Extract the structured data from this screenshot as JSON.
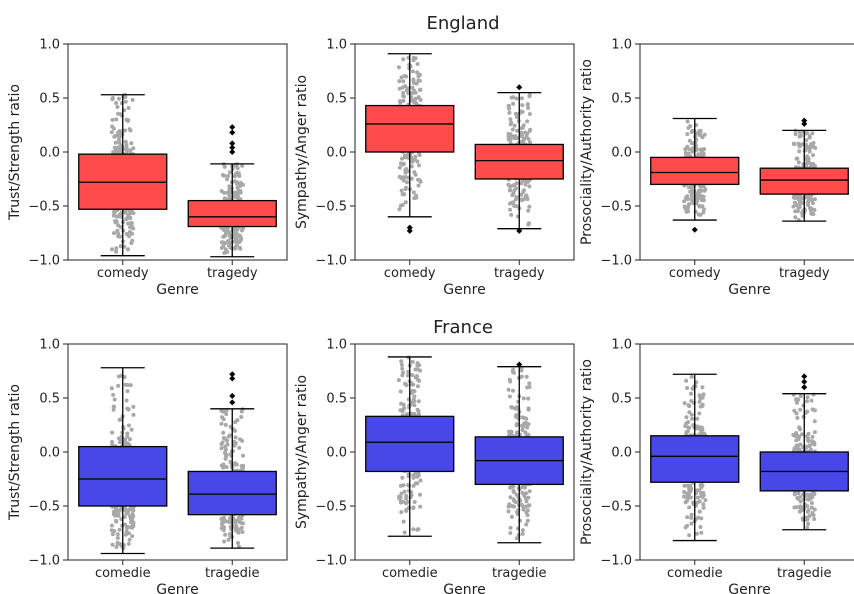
{
  "figure": {
    "row_titles": [
      "England",
      "France"
    ]
  },
  "colors": {
    "england": "#ff4b4b",
    "france": "#4848e8",
    "jitter": "#a8a8a8",
    "axis": "#222222"
  },
  "chart_data": [
    {
      "type": "box",
      "row": "England",
      "xlabel": "Genre",
      "ylabel": "Trust/Strength ratio",
      "ylim": [
        -1.0,
        1.0
      ],
      "yticks": [
        -1.0,
        -0.5,
        0.0,
        0.5,
        1.0
      ],
      "grid": false,
      "categories": [
        "comedy",
        "tragedy"
      ],
      "boxes": [
        {
          "whisker_low": -0.96,
          "q1": -0.53,
          "median": -0.28,
          "q3": -0.02,
          "whisker_high": 0.53,
          "outliers": []
        },
        {
          "whisker_low": -0.97,
          "q1": -0.69,
          "median": -0.6,
          "q3": -0.45,
          "whisker_high": -0.11,
          "outliers": [
            0.0,
            0.04,
            0.08,
            0.18,
            0.23
          ]
        }
      ]
    },
    {
      "type": "box",
      "row": "England",
      "xlabel": "Genre",
      "ylabel": "Sympathy/Anger ratio",
      "ylim": [
        -1.0,
        1.0
      ],
      "yticks": [
        -1.0,
        -0.5,
        0.0,
        0.5,
        1.0
      ],
      "grid": false,
      "categories": [
        "comedy",
        "tragedy"
      ],
      "boxes": [
        {
          "whisker_low": -0.6,
          "q1": 0.0,
          "median": 0.26,
          "q3": 0.43,
          "whisker_high": 0.91,
          "outliers": [
            -0.7,
            -0.73
          ]
        },
        {
          "whisker_low": -0.71,
          "q1": -0.25,
          "median": -0.08,
          "q3": 0.07,
          "whisker_high": 0.55,
          "outliers": [
            0.6,
            -0.73
          ]
        }
      ]
    },
    {
      "type": "box",
      "row": "England",
      "xlabel": "Genre",
      "ylabel": "Prosociality/Authority ratio",
      "ylim": [
        -1.0,
        1.0
      ],
      "yticks": [
        -1.0,
        -0.5,
        0.0,
        0.5,
        1.0
      ],
      "grid": false,
      "categories": [
        "comedy",
        "tragedy"
      ],
      "boxes": [
        {
          "whisker_low": -0.63,
          "q1": -0.3,
          "median": -0.19,
          "q3": -0.05,
          "whisker_high": 0.31,
          "outliers": [
            -0.72
          ]
        },
        {
          "whisker_low": -0.64,
          "q1": -0.39,
          "median": -0.26,
          "q3": -0.15,
          "whisker_high": 0.2,
          "outliers": [
            0.26,
            0.29
          ]
        }
      ]
    },
    {
      "type": "box",
      "row": "France",
      "xlabel": "Genre",
      "ylabel": "Trust/Strength ratio",
      "ylim": [
        -1.0,
        1.0
      ],
      "yticks": [
        -1.0,
        -0.5,
        0.0,
        0.5,
        1.0
      ],
      "grid": false,
      "categories": [
        "comedie",
        "tragedie"
      ],
      "boxes": [
        {
          "whisker_low": -0.94,
          "q1": -0.5,
          "median": -0.25,
          "q3": 0.05,
          "whisker_high": 0.78,
          "outliers": []
        },
        {
          "whisker_low": -0.89,
          "q1": -0.58,
          "median": -0.39,
          "q3": -0.18,
          "whisker_high": 0.4,
          "outliers": [
            0.46,
            0.52,
            0.68,
            0.72
          ]
        }
      ]
    },
    {
      "type": "box",
      "row": "France",
      "xlabel": "Genre",
      "ylabel": "Sympathy/Anger ratio",
      "ylim": [
        -1.0,
        1.0
      ],
      "yticks": [
        -1.0,
        -0.5,
        0.0,
        0.5,
        1.0
      ],
      "grid": false,
      "categories": [
        "comedie",
        "tragedie"
      ],
      "boxes": [
        {
          "whisker_low": -0.78,
          "q1": -0.18,
          "median": 0.09,
          "q3": 0.33,
          "whisker_high": 0.88,
          "outliers": []
        },
        {
          "whisker_low": -0.84,
          "q1": -0.3,
          "median": -0.08,
          "q3": 0.14,
          "whisker_high": 0.79,
          "outliers": [
            0.81
          ]
        }
      ]
    },
    {
      "type": "box",
      "row": "France",
      "xlabel": "Genre",
      "ylabel": "Prosociality/Authority ratio",
      "ylim": [
        -1.0,
        1.0
      ],
      "yticks": [
        -1.0,
        -0.5,
        0.0,
        0.5,
        1.0
      ],
      "grid": false,
      "categories": [
        "comedie",
        "tragedie"
      ],
      "boxes": [
        {
          "whisker_low": -0.82,
          "q1": -0.28,
          "median": -0.04,
          "q3": 0.15,
          "whisker_high": 0.72,
          "outliers": []
        },
        {
          "whisker_low": -0.72,
          "q1": -0.36,
          "median": -0.18,
          "q3": 0.0,
          "whisker_high": 0.54,
          "outliers": [
            0.6,
            0.65,
            0.7
          ]
        }
      ]
    }
  ]
}
